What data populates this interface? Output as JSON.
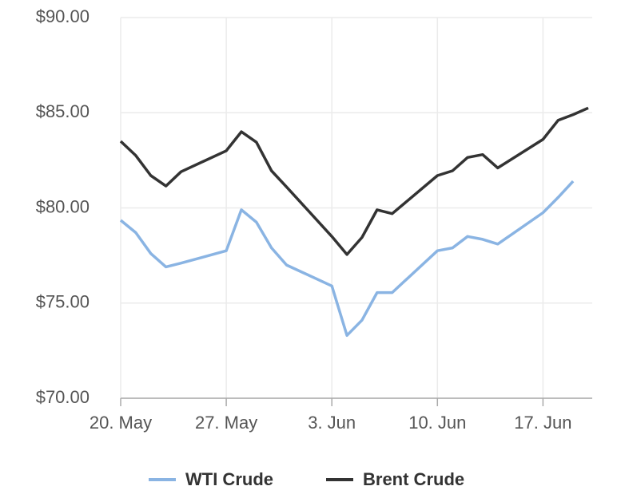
{
  "chart_data": {
    "type": "line",
    "x": [
      "05-20",
      "05-21",
      "05-22",
      "05-23",
      "05-24",
      "05-27",
      "05-28",
      "05-29",
      "05-30",
      "05-31",
      "06-03",
      "06-04",
      "06-05",
      "06-06",
      "06-07",
      "06-10",
      "06-11",
      "06-12",
      "06-13",
      "06-14",
      "06-17",
      "06-18",
      "06-19",
      "06-20"
    ],
    "series": [
      {
        "name": "WTI Crude",
        "color": "#8ab4e3",
        "values": [
          79.35,
          78.7,
          77.6,
          76.9,
          77.1,
          77.75,
          79.9,
          79.25,
          77.9,
          77.0,
          75.9,
          73.3,
          74.1,
          75.55,
          75.55,
          77.75,
          77.9,
          78.5,
          78.35,
          78.1,
          79.75,
          80.55,
          81.4,
          null
        ]
      },
      {
        "name": "Brent Crude",
        "color": "#333333",
        "values": [
          83.5,
          82.75,
          81.7,
          81.15,
          81.9,
          83.0,
          84.0,
          83.45,
          81.95,
          81.1,
          78.5,
          77.55,
          78.45,
          79.9,
          79.7,
          81.7,
          81.95,
          82.65,
          82.8,
          82.1,
          83.6,
          84.6,
          84.9,
          85.25
        ]
      }
    ],
    "xlim": [
      "05-20",
      "06-20"
    ],
    "xticks": [
      {
        "value": "05-20",
        "label": "20. May"
      },
      {
        "value": "05-27",
        "label": "27. May"
      },
      {
        "value": "06-03",
        "label": "3. Jun"
      },
      {
        "value": "06-10",
        "label": "10. Jun"
      },
      {
        "value": "06-17",
        "label": "17. Jun"
      }
    ],
    "ylim": [
      70,
      90
    ],
    "yticks": [
      {
        "value": 70,
        "label": "$70.00"
      },
      {
        "value": 75,
        "label": "$75.00"
      },
      {
        "value": 80,
        "label": "$80.00"
      },
      {
        "value": 85,
        "label": "$85.00"
      },
      {
        "value": 90,
        "label": "$90.00"
      }
    ],
    "grid": true,
    "legend": "bottom"
  }
}
